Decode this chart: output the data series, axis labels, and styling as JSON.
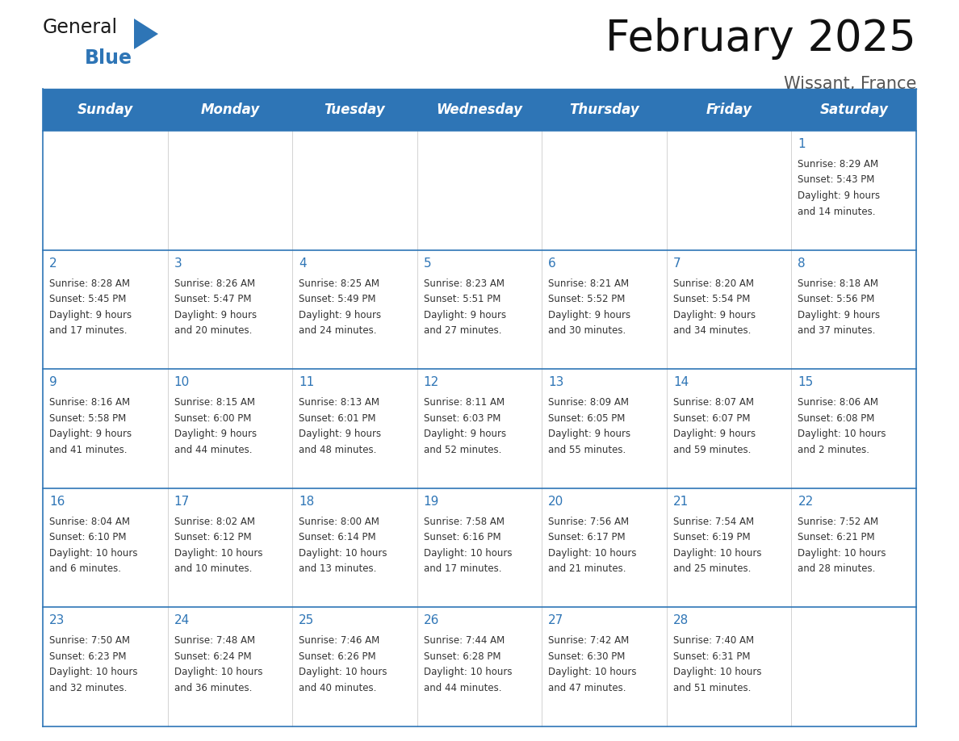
{
  "title": "February 2025",
  "subtitle": "Wissant, France",
  "header_color": "#2E75B6",
  "header_text_color": "#FFFFFF",
  "grid_line_color": "#2E75B6",
  "background_color": "#FFFFFF",
  "days_of_week": [
    "Sunday",
    "Monday",
    "Tuesday",
    "Wednesday",
    "Thursday",
    "Friday",
    "Saturday"
  ],
  "calendar_data": [
    [
      null,
      null,
      null,
      null,
      null,
      null,
      {
        "day": "1",
        "sunrise": "8:29 AM",
        "sunset": "5:43 PM",
        "daylight": "9 hours",
        "daylight2": "and 14 minutes."
      }
    ],
    [
      {
        "day": "2",
        "sunrise": "8:28 AM",
        "sunset": "5:45 PM",
        "daylight": "9 hours",
        "daylight2": "and 17 minutes."
      },
      {
        "day": "3",
        "sunrise": "8:26 AM",
        "sunset": "5:47 PM",
        "daylight": "9 hours",
        "daylight2": "and 20 minutes."
      },
      {
        "day": "4",
        "sunrise": "8:25 AM",
        "sunset": "5:49 PM",
        "daylight": "9 hours",
        "daylight2": "and 24 minutes."
      },
      {
        "day": "5",
        "sunrise": "8:23 AM",
        "sunset": "5:51 PM",
        "daylight": "9 hours",
        "daylight2": "and 27 minutes."
      },
      {
        "day": "6",
        "sunrise": "8:21 AM",
        "sunset": "5:52 PM",
        "daylight": "9 hours",
        "daylight2": "and 30 minutes."
      },
      {
        "day": "7",
        "sunrise": "8:20 AM",
        "sunset": "5:54 PM",
        "daylight": "9 hours",
        "daylight2": "and 34 minutes."
      },
      {
        "day": "8",
        "sunrise": "8:18 AM",
        "sunset": "5:56 PM",
        "daylight": "9 hours",
        "daylight2": "and 37 minutes."
      }
    ],
    [
      {
        "day": "9",
        "sunrise": "8:16 AM",
        "sunset": "5:58 PM",
        "daylight": "9 hours",
        "daylight2": "and 41 minutes."
      },
      {
        "day": "10",
        "sunrise": "8:15 AM",
        "sunset": "6:00 PM",
        "daylight": "9 hours",
        "daylight2": "and 44 minutes."
      },
      {
        "day": "11",
        "sunrise": "8:13 AM",
        "sunset": "6:01 PM",
        "daylight": "9 hours",
        "daylight2": "and 48 minutes."
      },
      {
        "day": "12",
        "sunrise": "8:11 AM",
        "sunset": "6:03 PM",
        "daylight": "9 hours",
        "daylight2": "and 52 minutes."
      },
      {
        "day": "13",
        "sunrise": "8:09 AM",
        "sunset": "6:05 PM",
        "daylight": "9 hours",
        "daylight2": "and 55 minutes."
      },
      {
        "day": "14",
        "sunrise": "8:07 AM",
        "sunset": "6:07 PM",
        "daylight": "9 hours",
        "daylight2": "and 59 minutes."
      },
      {
        "day": "15",
        "sunrise": "8:06 AM",
        "sunset": "6:08 PM",
        "daylight": "10 hours",
        "daylight2": "and 2 minutes."
      }
    ],
    [
      {
        "day": "16",
        "sunrise": "8:04 AM",
        "sunset": "6:10 PM",
        "daylight": "10 hours",
        "daylight2": "and 6 minutes."
      },
      {
        "day": "17",
        "sunrise": "8:02 AM",
        "sunset": "6:12 PM",
        "daylight": "10 hours",
        "daylight2": "and 10 minutes."
      },
      {
        "day": "18",
        "sunrise": "8:00 AM",
        "sunset": "6:14 PM",
        "daylight": "10 hours",
        "daylight2": "and 13 minutes."
      },
      {
        "day": "19",
        "sunrise": "7:58 AM",
        "sunset": "6:16 PM",
        "daylight": "10 hours",
        "daylight2": "and 17 minutes."
      },
      {
        "day": "20",
        "sunrise": "7:56 AM",
        "sunset": "6:17 PM",
        "daylight": "10 hours",
        "daylight2": "and 21 minutes."
      },
      {
        "day": "21",
        "sunrise": "7:54 AM",
        "sunset": "6:19 PM",
        "daylight": "10 hours",
        "daylight2": "and 25 minutes."
      },
      {
        "day": "22",
        "sunrise": "7:52 AM",
        "sunset": "6:21 PM",
        "daylight": "10 hours",
        "daylight2": "and 28 minutes."
      }
    ],
    [
      {
        "day": "23",
        "sunrise": "7:50 AM",
        "sunset": "6:23 PM",
        "daylight": "10 hours",
        "daylight2": "and 32 minutes."
      },
      {
        "day": "24",
        "sunrise": "7:48 AM",
        "sunset": "6:24 PM",
        "daylight": "10 hours",
        "daylight2": "and 36 minutes."
      },
      {
        "day": "25",
        "sunrise": "7:46 AM",
        "sunset": "6:26 PM",
        "daylight": "10 hours",
        "daylight2": "and 40 minutes."
      },
      {
        "day": "26",
        "sunrise": "7:44 AM",
        "sunset": "6:28 PM",
        "daylight": "10 hours",
        "daylight2": "and 44 minutes."
      },
      {
        "day": "27",
        "sunrise": "7:42 AM",
        "sunset": "6:30 PM",
        "daylight": "10 hours",
        "daylight2": "and 47 minutes."
      },
      {
        "day": "28",
        "sunrise": "7:40 AM",
        "sunset": "6:31 PM",
        "daylight": "10 hours",
        "daylight2": "and 51 minutes."
      },
      null
    ]
  ],
  "logo_general_color": "#1a1a1a",
  "logo_blue_color": "#2E75B6",
  "cell_text_color": "#333333",
  "day_number_color": "#2E75B6",
  "title_fontsize": 38,
  "subtitle_fontsize": 15,
  "header_fontsize": 12,
  "day_num_fontsize": 11,
  "cell_fontsize": 8.5
}
